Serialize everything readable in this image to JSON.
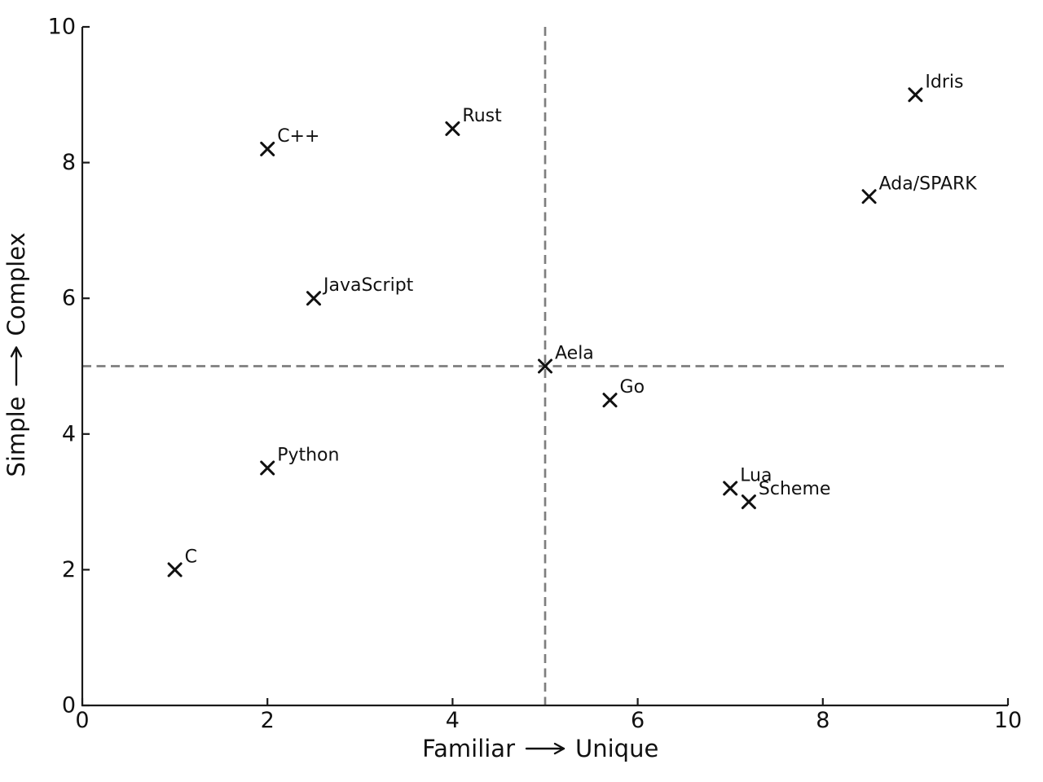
{
  "chart_data": {
    "type": "scatter",
    "title": "",
    "xlabel": {
      "text": "Familiar ⟶ Unique",
      "from": "Familiar",
      "to": "Unique"
    },
    "ylabel": {
      "text": "Simple ⟶ Complex",
      "from": "Simple",
      "to": "Complex"
    },
    "xlim": [
      0,
      10
    ],
    "ylim": [
      0,
      10
    ],
    "xticks": [
      "0",
      "2",
      "4",
      "6",
      "8",
      "10"
    ],
    "yticks": [
      "0",
      "2",
      "4",
      "6",
      "8",
      "10"
    ],
    "grid": false,
    "legend": false,
    "marker": "x",
    "colors": {
      "marker": "#111111",
      "text": "#111111",
      "axis": "#1a1a1a",
      "reference_line": "#7f7f7f"
    },
    "reference_lines": [
      {
        "orientation": "vertical",
        "value": 5,
        "style": "dashed"
      },
      {
        "orientation": "horizontal",
        "value": 5,
        "style": "dashed"
      }
    ],
    "points": [
      {
        "label": "C",
        "x": 1,
        "y": 2
      },
      {
        "label": "Python",
        "x": 2,
        "y": 3.5
      },
      {
        "label": "C++",
        "x": 2,
        "y": 8.2
      },
      {
        "label": "JavaScript",
        "x": 2.5,
        "y": 6
      },
      {
        "label": "Rust",
        "x": 4,
        "y": 8.5
      },
      {
        "label": "Aela",
        "x": 5,
        "y": 5
      },
      {
        "label": "Go",
        "x": 5.7,
        "y": 4.5
      },
      {
        "label": "Lua",
        "x": 7,
        "y": 3.2
      },
      {
        "label": "Scheme",
        "x": 7.2,
        "y": 3
      },
      {
        "label": "Ada/SPARK",
        "x": 8.5,
        "y": 7.5
      },
      {
        "label": "Idris",
        "x": 9,
        "y": 9
      }
    ]
  }
}
